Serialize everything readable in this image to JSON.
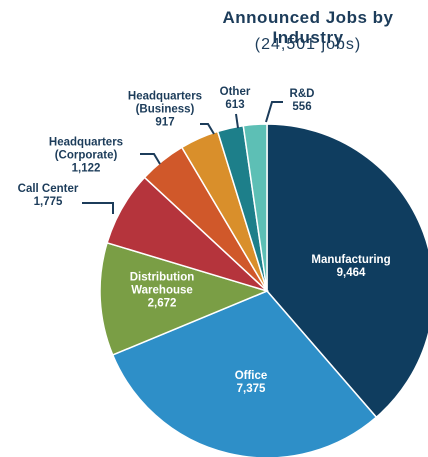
{
  "chart_data": {
    "type": "pie",
    "title": "Announced Jobs by Industry",
    "subtitle": "(24,501 jobs)",
    "categories": [
      "Manufacturing",
      "Office",
      "Distribution Warehouse",
      "Call Center",
      "Headquarters (Corporate)",
      "Headquarters (Business)",
      "Other",
      "R&D"
    ],
    "values": [
      9464,
      7375,
      2672,
      1775,
      1122,
      917,
      613,
      556
    ],
    "value_labels": [
      "9,464",
      "7,375",
      "2,672",
      "1,775",
      "1,122",
      "917",
      "613",
      "556"
    ],
    "colors": [
      "#0f3d5f",
      "#2e8fc8",
      "#7a9e45",
      "#b5343c",
      "#d0582a",
      "#d98f2b",
      "#1d7f8a",
      "#5dbfb5"
    ]
  }
}
